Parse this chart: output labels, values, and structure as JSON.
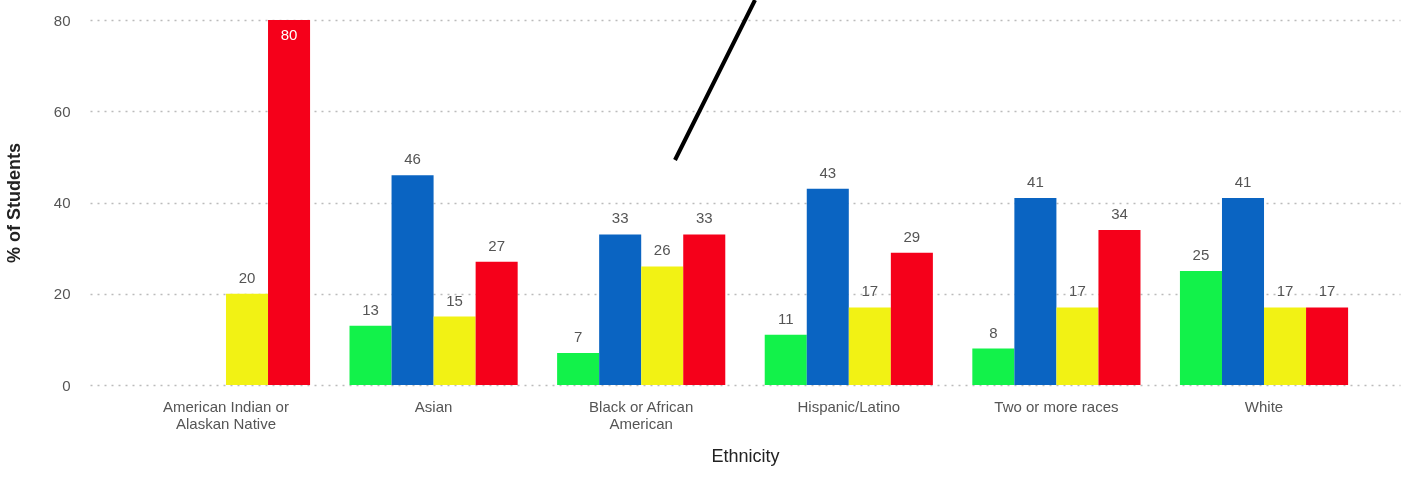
{
  "chart_data": {
    "type": "bar",
    "xlabel": "Ethnicity",
    "ylabel": "% of Students",
    "categories": [
      "American Indian or Alaskan Native",
      "Asian",
      "Black or African American",
      "Hispanic/Latino",
      "Two or more races",
      "White"
    ],
    "series": [
      {
        "color": "#12f24a",
        "values": [
          null,
          13,
          7,
          11,
          8,
          25
        ]
      },
      {
        "color": "#0a64c2",
        "values": [
          null,
          46,
          33,
          43,
          41,
          41
        ]
      },
      {
        "color": "#f2f214",
        "values": [
          20,
          15,
          26,
          17,
          17,
          17
        ]
      },
      {
        "color": "#f5001a",
        "values": [
          80,
          27,
          33,
          29,
          34,
          17
        ]
      }
    ],
    "ylim": [
      0,
      80
    ],
    "yticks": [
      0,
      20,
      40,
      60,
      80
    ],
    "grid": "y",
    "data_labels": true
  }
}
